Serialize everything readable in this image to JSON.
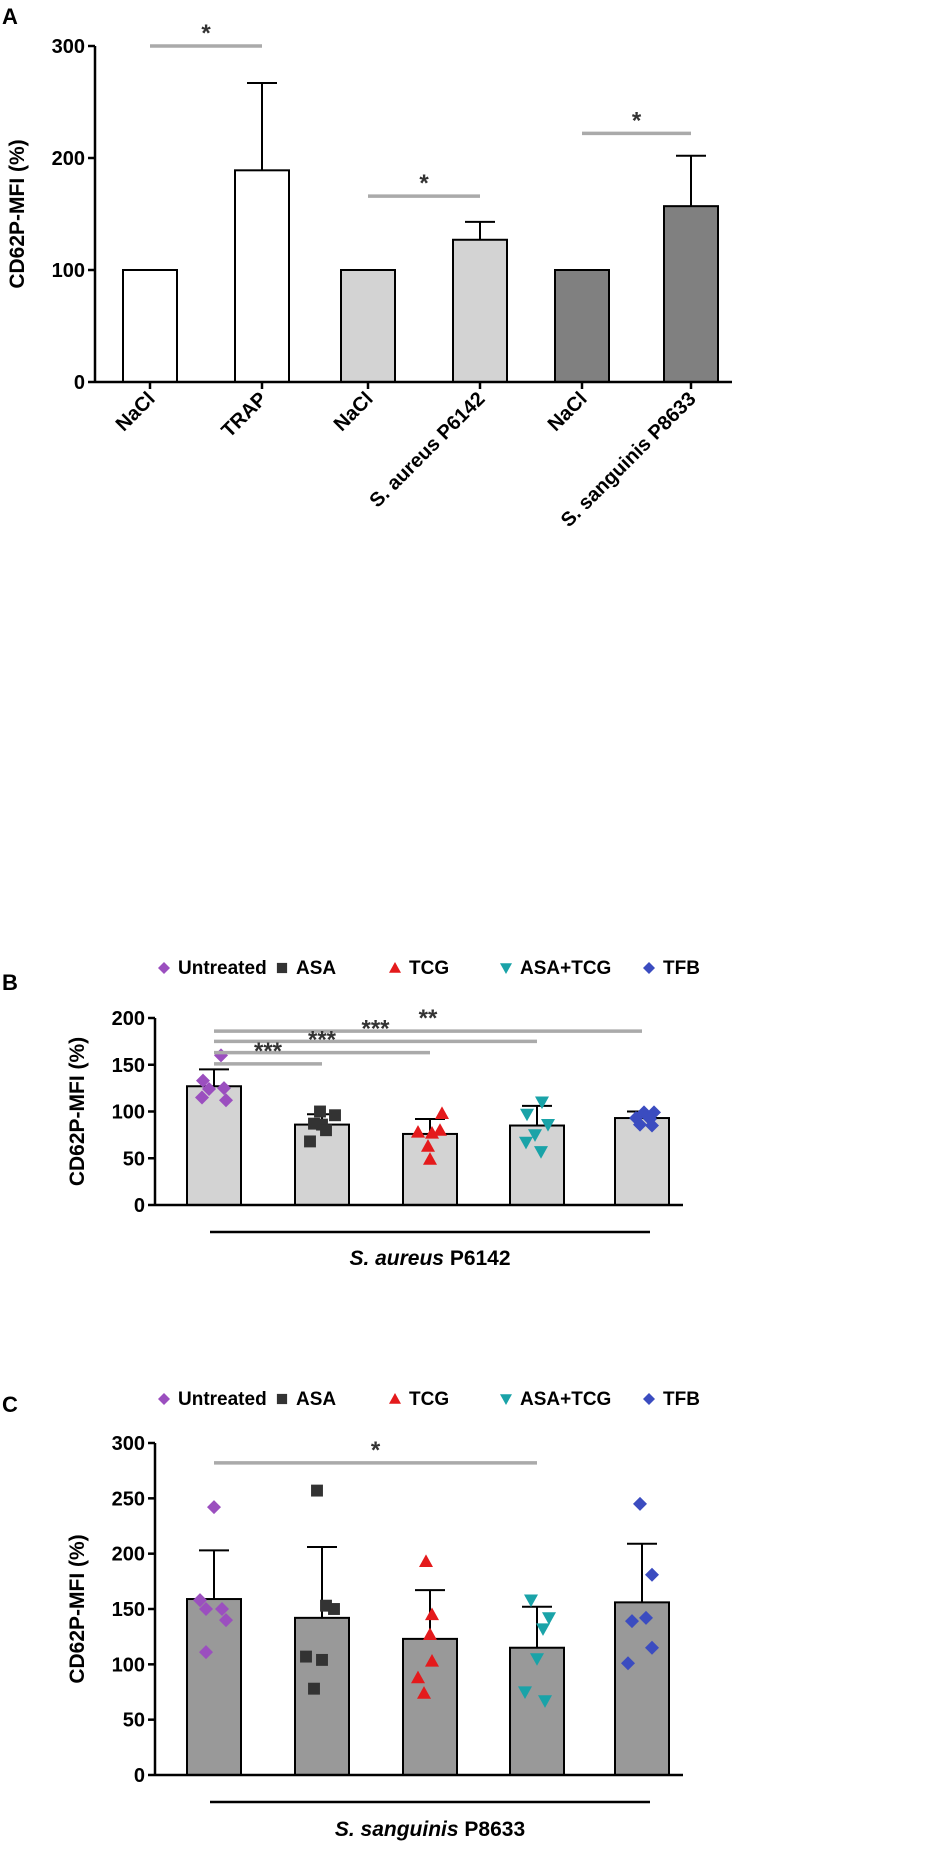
{
  "chart_data": [
    {
      "panel": "A",
      "type": "bar",
      "ylabel": "CD62P-MFI (%)",
      "ylim": [
        0,
        300
      ],
      "yticks": [
        "0",
        "100",
        "200",
        "300"
      ],
      "categories": [
        "NaCl",
        "TRAP",
        "NaCl",
        "S. aureus P6142",
        "NaCl",
        "S. sanguinis P8633"
      ],
      "values": [
        100,
        189,
        100,
        127,
        100,
        157
      ],
      "errors": [
        0,
        78,
        0,
        16,
        0,
        45
      ],
      "colors": [
        "#ffffff",
        "#ffffff",
        "#d3d3d3",
        "#d3d3d3",
        "#808080",
        "#808080"
      ],
      "significance": [
        {
          "from": 0,
          "to": 1,
          "label": "*",
          "y": 300
        },
        {
          "from": 2,
          "to": 3,
          "label": "*",
          "y": 166
        },
        {
          "from": 4,
          "to": 5,
          "label": "*",
          "y": 222
        }
      ]
    },
    {
      "panel": "B",
      "type": "bar",
      "ylabel": "CD62P-MFI (%)",
      "ylim": [
        0,
        200
      ],
      "yticks": [
        "0",
        "50",
        "100",
        "150",
        "200"
      ],
      "group_label": {
        "italic": "S. aureus",
        "plain": " P6142"
      },
      "legend": [
        {
          "name": "Untreated",
          "marker": "diamond",
          "color": "#9b4fbf"
        },
        {
          "name": "ASA",
          "marker": "square",
          "color": "#333333"
        },
        {
          "name": "TCG",
          "marker": "triangle-up",
          "color": "#e41a1c"
        },
        {
          "name": "ASA+TCG",
          "marker": "triangle-down",
          "color": "#1aa3a8"
        },
        {
          "name": "TFB",
          "marker": "diamond",
          "color": "#3b4cc0"
        }
      ],
      "categories": [
        "Untreated",
        "ASA",
        "TCG",
        "ASA+TCG",
        "TFB"
      ],
      "values": [
        127,
        86,
        76,
        85,
        93
      ],
      "errors": [
        18,
        11,
        16,
        21,
        7
      ],
      "bar_color": "#d3d3d3",
      "points": [
        [
          160,
          133,
          125,
          124,
          115,
          112
        ],
        [
          100,
          96,
          87,
          86,
          80,
          68
        ],
        [
          98,
          80,
          78,
          77,
          63,
          49
        ],
        [
          110,
          97,
          86,
          75,
          67,
          57
        ],
        [
          99,
          99,
          93,
          92,
          86,
          85
        ]
      ],
      "significance": [
        {
          "from": 0,
          "to": 4,
          "label": "**",
          "y": 186
        },
        {
          "from": 0,
          "to": 3,
          "label": "***",
          "y": 175
        },
        {
          "from": 0,
          "to": 2,
          "label": "***",
          "y": 163
        },
        {
          "from": 0,
          "to": 1,
          "label": "***",
          "y": 151
        }
      ]
    },
    {
      "panel": "C",
      "type": "bar",
      "ylabel": "CD62P-MFI (%)",
      "ylim": [
        0,
        300
      ],
      "yticks": [
        "0",
        "50",
        "100",
        "150",
        "200",
        "250",
        "300"
      ],
      "group_label": {
        "italic": "S. sanguinis",
        "plain": " P8633"
      },
      "legend": [
        {
          "name": "Untreated",
          "marker": "diamond",
          "color": "#9b4fbf"
        },
        {
          "name": "ASA",
          "marker": "square",
          "color": "#333333"
        },
        {
          "name": "TCG",
          "marker": "triangle-up",
          "color": "#e41a1c"
        },
        {
          "name": "ASA+TCG",
          "marker": "triangle-down",
          "color": "#1aa3a8"
        },
        {
          "name": "TFB",
          "marker": "diamond",
          "color": "#3b4cc0"
        }
      ],
      "categories": [
        "Untreated",
        "ASA",
        "TCG",
        "ASA+TCG",
        "TFB"
      ],
      "values": [
        159,
        142,
        123,
        115,
        156
      ],
      "errors": [
        44,
        64,
        44,
        37,
        53
      ],
      "bar_color": "#999999",
      "points": [
        [
          242,
          158,
          150,
          150,
          140,
          111
        ],
        [
          257,
          153,
          150,
          107,
          104,
          78
        ],
        [
          193,
          145,
          127,
          103,
          88,
          74
        ],
        [
          158,
          142,
          132,
          105,
          75,
          67
        ],
        [
          245,
          181,
          142,
          139,
          115,
          101
        ]
      ],
      "significance": [
        {
          "from": 0,
          "to": 3,
          "label": "*",
          "y": 282
        }
      ]
    }
  ]
}
